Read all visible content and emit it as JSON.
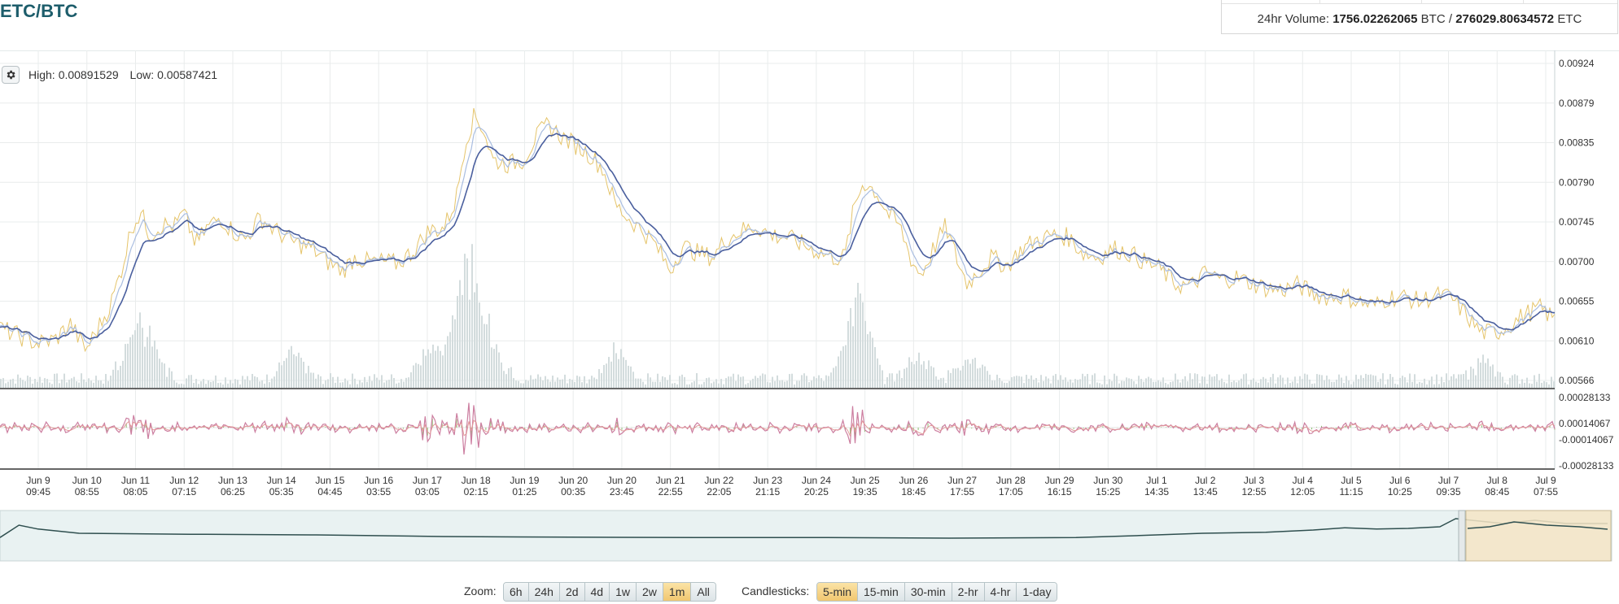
{
  "pair": {
    "title": "ETC/BTC"
  },
  "volume": {
    "prefix": "24hr Volume:",
    "btc_value": "1756.02262065",
    "btc_unit": "BTC /",
    "etc_value": "276029.80634572",
    "etc_unit": "ETC"
  },
  "stats": {
    "high_label": "High:",
    "high_value": "0.00891529",
    "low_label": "Low:",
    "low_value": "0.00587421"
  },
  "colors": {
    "price": "#e5c46a",
    "ema_fast": "#a9bde0",
    "ema_slow": "#4a5f9e",
    "volume": "#d3dcdd",
    "macd_hist": "#8bbe6f",
    "macd_line": "#cc7ea0",
    "signal_line": "#e29a9a",
    "nav_line": "#2f4f4f",
    "nav_fill": "#e9f2f2",
    "nav_selection": "#f5e6c6",
    "grid": "#e9ecec",
    "axis": "#555555"
  },
  "controls": {
    "zoom_label": "Zoom:",
    "zoom_options": [
      "6h",
      "24h",
      "2d",
      "4d",
      "1w",
      "2w",
      "1m",
      "All"
    ],
    "zoom_active": "1m",
    "candle_label": "Candlesticks:",
    "candle_options": [
      "5-min",
      "15-min",
      "30-min",
      "2-hr",
      "4-hr",
      "1-day"
    ],
    "candle_active": "5-min"
  },
  "chart_data": {
    "type": "line",
    "title": "ETC/BTC",
    "price_axis": {
      "ticks": [
        "0.00924",
        "0.00879",
        "0.00835",
        "0.00790",
        "0.00745",
        "0.00700",
        "0.00655",
        "0.00610",
        "0.00566"
      ],
      "range": [
        0.00566,
        0.00924
      ]
    },
    "indicator_axis": {
      "ticks": [
        "0.00028133",
        "0.00014067",
        "-0.00014067",
        "-0.00028133"
      ],
      "range": [
        -0.00028133,
        0.00028133
      ]
    },
    "x_ticks": [
      [
        "Jun 9",
        "09:45"
      ],
      [
        "Jun 10",
        "08:55"
      ],
      [
        "Jun 11",
        "08:05"
      ],
      [
        "Jun 12",
        "07:15"
      ],
      [
        "Jun 13",
        "06:25"
      ],
      [
        "Jun 14",
        "05:35"
      ],
      [
        "Jun 15",
        "04:45"
      ],
      [
        "Jun 16",
        "03:55"
      ],
      [
        "Jun 17",
        "03:05"
      ],
      [
        "Jun 18",
        "02:15"
      ],
      [
        "Jun 19",
        "01:25"
      ],
      [
        "Jun 20",
        "00:35"
      ],
      [
        "Jun 20",
        "23:45"
      ],
      [
        "Jun 21",
        "22:55"
      ],
      [
        "Jun 22",
        "22:05"
      ],
      [
        "Jun 23",
        "21:15"
      ],
      [
        "Jun 24",
        "20:25"
      ],
      [
        "Jun 25",
        "19:35"
      ],
      [
        "Jun 26",
        "18:45"
      ],
      [
        "Jun 27",
        "17:55"
      ],
      [
        "Jun 28",
        "17:05"
      ],
      [
        "Jun 29",
        "16:15"
      ],
      [
        "Jun 30",
        "15:25"
      ],
      [
        "Jul 1",
        "14:35"
      ],
      [
        "Jul 2",
        "13:45"
      ],
      [
        "Jul 3",
        "12:55"
      ],
      [
        "Jul 4",
        "12:05"
      ],
      [
        "Jul 5",
        "11:15"
      ],
      [
        "Jul 6",
        "10:25"
      ],
      [
        "Jul 7",
        "09:35"
      ],
      [
        "Jul 8",
        "08:45"
      ],
      [
        "Jul 9",
        "07:55"
      ]
    ],
    "price_series": [
      [
        0,
        0.00625
      ],
      [
        0.7,
        0.00615
      ],
      [
        1.2,
        0.00608
      ],
      [
        1.8,
        0.00612
      ],
      [
        2.3,
        0.0063
      ],
      [
        2.8,
        0.006
      ],
      [
        3.2,
        0.00625
      ],
      [
        3.6,
        0.0065
      ],
      [
        4.0,
        0.00695
      ],
      [
        4.3,
        0.0074
      ],
      [
        4.6,
        0.00755
      ],
      [
        4.9,
        0.0073
      ],
      [
        5.3,
        0.00742
      ],
      [
        5.7,
        0.0074
      ],
      [
        6.0,
        0.00755
      ],
      [
        6.4,
        0.0072
      ],
      [
        6.8,
        0.0074
      ],
      [
        7.2,
        0.0075
      ],
      [
        7.6,
        0.00735
      ],
      [
        8.0,
        0.00725
      ],
      [
        8.5,
        0.0075
      ],
      [
        9.0,
        0.00735
      ],
      [
        9.6,
        0.00722
      ],
      [
        10.2,
        0.00715
      ],
      [
        10.7,
        0.007
      ],
      [
        11.2,
        0.0069
      ],
      [
        11.6,
        0.00705
      ],
      [
        12.0,
        0.007
      ],
      [
        12.5,
        0.007
      ],
      [
        13.0,
        0.00698
      ],
      [
        13.5,
        0.00712
      ],
      [
        14.0,
        0.00735
      ],
      [
        14.5,
        0.00738
      ],
      [
        14.9,
        0.0077
      ],
      [
        15.2,
        0.00835
      ],
      [
        15.5,
        0.00865
      ],
      [
        15.8,
        0.0085
      ],
      [
        16.1,
        0.00815
      ],
      [
        16.6,
        0.0081
      ],
      [
        17.1,
        0.00815
      ],
      [
        17.5,
        0.0084
      ],
      [
        17.9,
        0.00855
      ],
      [
        18.4,
        0.0084
      ],
      [
        18.9,
        0.0083
      ],
      [
        19.3,
        0.0082
      ],
      [
        19.7,
        0.00805
      ],
      [
        20.1,
        0.00765
      ],
      [
        20.5,
        0.0075
      ],
      [
        21.0,
        0.00735
      ],
      [
        21.4,
        0.0072
      ],
      [
        21.9,
        0.0069
      ],
      [
        22.3,
        0.00718
      ],
      [
        22.8,
        0.0071
      ],
      [
        23.3,
        0.00705
      ],
      [
        23.7,
        0.00725
      ],
      [
        24.2,
        0.00735
      ],
      [
        24.7,
        0.0074
      ],
      [
        25.2,
        0.0073
      ],
      [
        25.7,
        0.00728
      ],
      [
        26.2,
        0.0072
      ],
      [
        26.7,
        0.00712
      ],
      [
        27.2,
        0.00705
      ],
      [
        27.6,
        0.00705
      ],
      [
        27.9,
        0.0076
      ],
      [
        28.2,
        0.0079
      ],
      [
        28.6,
        0.0078
      ],
      [
        29.0,
        0.00755
      ],
      [
        29.4,
        0.0074
      ],
      [
        29.8,
        0.007
      ],
      [
        30.1,
        0.00685
      ],
      [
        30.5,
        0.00715
      ],
      [
        30.9,
        0.0074
      ],
      [
        31.3,
        0.007
      ],
      [
        31.6,
        0.00675
      ],
      [
        32.0,
        0.0069
      ],
      [
        32.4,
        0.00705
      ],
      [
        32.9,
        0.00695
      ],
      [
        33.4,
        0.00715
      ],
      [
        33.9,
        0.00725
      ],
      [
        34.4,
        0.0073
      ],
      [
        34.9,
        0.00728
      ],
      [
        35.4,
        0.0071
      ],
      [
        35.9,
        0.00705
      ],
      [
        36.4,
        0.00715
      ],
      [
        36.9,
        0.0071
      ],
      [
        37.4,
        0.007
      ],
      [
        37.9,
        0.00692
      ],
      [
        38.4,
        0.00675
      ],
      [
        38.9,
        0.00672
      ],
      [
        39.4,
        0.00688
      ],
      [
        39.9,
        0.0068
      ],
      [
        40.4,
        0.00682
      ],
      [
        40.9,
        0.00676
      ],
      [
        41.4,
        0.0067
      ],
      [
        41.9,
        0.00668
      ],
      [
        42.4,
        0.00674
      ],
      [
        42.9,
        0.00664
      ],
      [
        43.4,
        0.0066
      ],
      [
        43.9,
        0.00662
      ],
      [
        44.4,
        0.00655
      ],
      [
        44.9,
        0.0065
      ],
      [
        45.4,
        0.0066
      ],
      [
        45.9,
        0.0066
      ],
      [
        46.4,
        0.00655
      ],
      [
        46.9,
        0.00662
      ],
      [
        47.4,
        0.0066
      ],
      [
        47.9,
        0.0064
      ],
      [
        48.4,
        0.0062
      ],
      [
        48.9,
        0.0062
      ],
      [
        49.4,
        0.0063
      ],
      [
        49.8,
        0.0064
      ],
      [
        50.3,
        0.00648
      ],
      [
        50.8,
        0.00635
      ]
    ],
    "volume_spikes": [
      [
        4.3,
        0.6
      ],
      [
        4.9,
        0.45
      ],
      [
        9.5,
        0.35
      ],
      [
        14.0,
        0.55
      ],
      [
        15.0,
        0.62
      ],
      [
        15.3,
        1.0
      ],
      [
        15.6,
        0.55
      ],
      [
        16.2,
        0.3
      ],
      [
        20.1,
        0.4
      ],
      [
        27.9,
        0.9
      ],
      [
        28.1,
        0.55
      ],
      [
        30.0,
        0.35
      ],
      [
        31.6,
        0.3
      ],
      [
        48.4,
        0.25
      ]
    ],
    "navigator_series": [
      [
        0,
        0.58
      ],
      [
        0.6,
        0.2
      ],
      [
        1.2,
        0.32
      ],
      [
        2.5,
        0.45
      ],
      [
        6,
        0.48
      ],
      [
        10,
        0.5
      ],
      [
        14,
        0.55
      ],
      [
        18,
        0.57
      ],
      [
        22,
        0.58
      ],
      [
        26,
        0.58
      ],
      [
        30,
        0.6
      ],
      [
        34,
        0.58
      ],
      [
        36,
        0.52
      ],
      [
        38,
        0.45
      ],
      [
        40,
        0.42
      ],
      [
        41.5,
        0.35
      ],
      [
        42.5,
        0.28
      ],
      [
        43.5,
        0.32
      ],
      [
        44.5,
        0.3
      ],
      [
        45.5,
        0.25
      ],
      [
        46,
        0.0
      ],
      [
        46.5,
        0.05
      ],
      [
        47,
        0.1
      ],
      [
        47.5,
        0.15
      ],
      [
        48.5,
        0.05
      ],
      [
        49.5,
        0.15
      ],
      [
        50.8,
        0.15
      ]
    ]
  }
}
